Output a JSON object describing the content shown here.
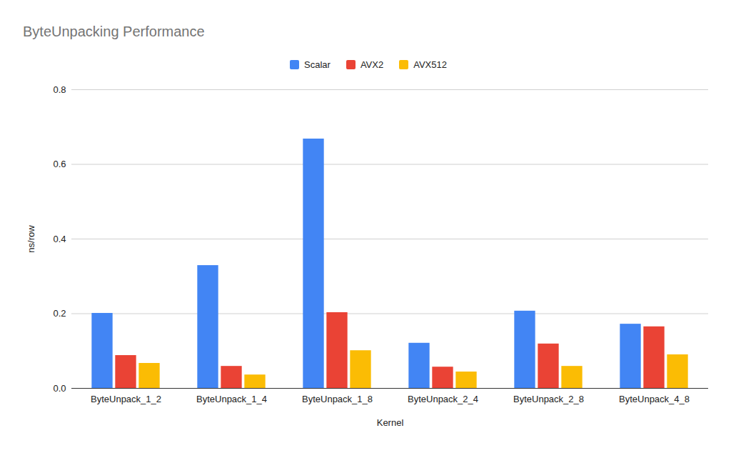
{
  "chart_data": {
    "type": "bar",
    "title": "ByteUnpacking Performance",
    "x_label": "Kernel",
    "y_label": "ns/row",
    "categories": [
      "ByteUnpack_1_2",
      "ByteUnpack_1_4",
      "ByteUnpack_1_8",
      "ByteUnpack_2_4",
      "ByteUnpack_2_8",
      "ByteUnpack_4_8"
    ],
    "series": [
      {
        "name": "Scalar",
        "color": "#4285f4",
        "values": [
          0.201,
          0.329,
          0.668,
          0.121,
          0.207,
          0.172
        ]
      },
      {
        "name": "AVX2",
        "color": "#ea4335",
        "values": [
          0.088,
          0.059,
          0.203,
          0.057,
          0.119,
          0.165
        ]
      },
      {
        "name": "AVX512",
        "color": "#fbbc04",
        "values": [
          0.067,
          0.036,
          0.101,
          0.044,
          0.059,
          0.09
        ]
      }
    ],
    "ylim": [
      0,
      0.8
    ],
    "yticks": [
      {
        "value": 0,
        "label": "0.0"
      },
      0.2,
      0.4,
      0.6,
      0.8
    ],
    "grid": true,
    "legend": "top"
  }
}
